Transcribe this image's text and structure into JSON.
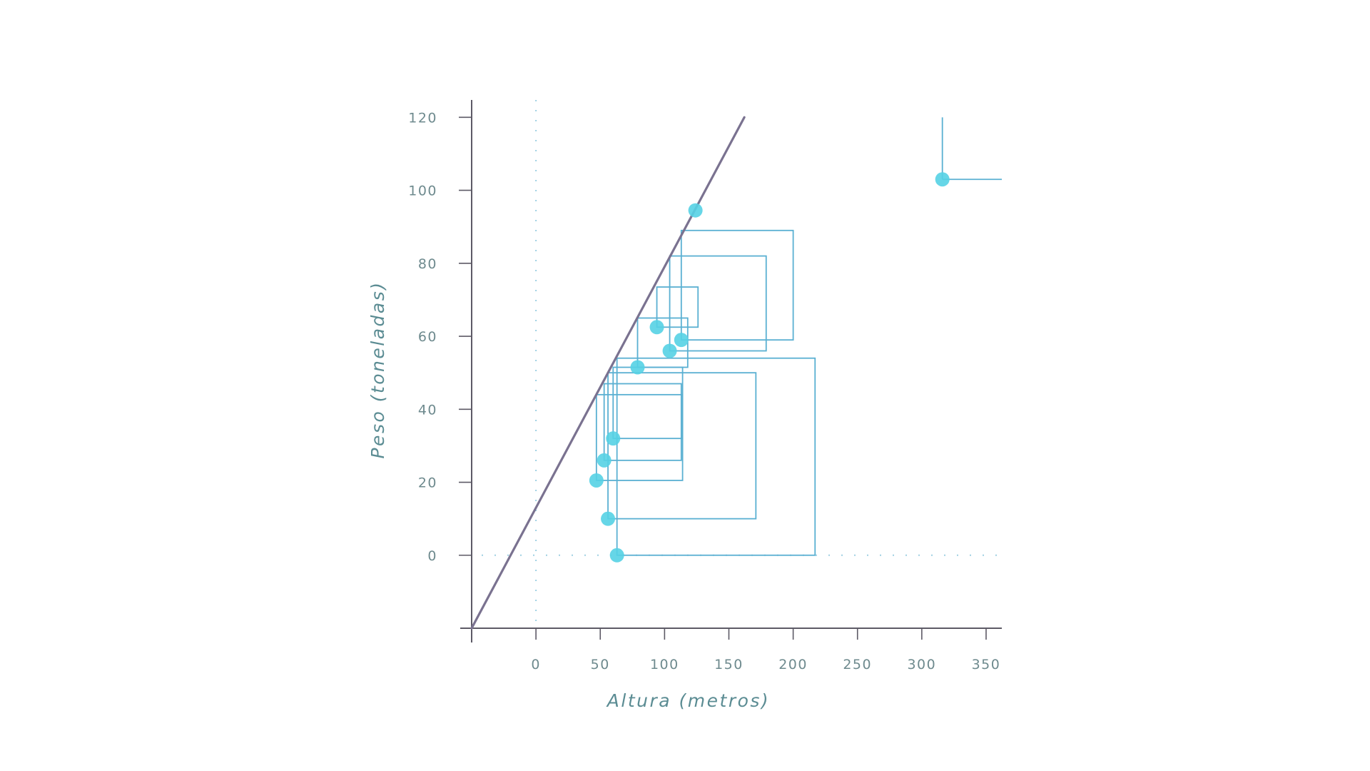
{
  "chart_data": {
    "type": "scatter",
    "title": "",
    "xlabel": "Altura (metros)",
    "ylabel": "Peso  (toneladas)",
    "xlim": [
      -50,
      360
    ],
    "ylim": [
      -20,
      123
    ],
    "x_ticks": [
      "0",
      "50",
      "100",
      "150",
      "200",
      "250",
      "300",
      "350"
    ],
    "y_ticks": [
      "120",
      "100",
      "80",
      "60",
      "40",
      "20",
      "0"
    ],
    "grid": false,
    "reference_lines": {
      "dotted_x": 0,
      "dotted_y": 0,
      "diagonal": {
        "from": [
          -50,
          -20
        ],
        "to": [
          162,
          120
        ]
      }
    },
    "points": [
      {
        "x": 63,
        "y": 0
      },
      {
        "x": 56,
        "y": 10
      },
      {
        "x": 47,
        "y": 20.5
      },
      {
        "x": 53,
        "y": 26
      },
      {
        "x": 60,
        "y": 32
      },
      {
        "x": 79,
        "y": 51.5
      },
      {
        "x": 104,
        "y": 56
      },
      {
        "x": 113,
        "y": 59
      },
      {
        "x": 94,
        "y": 62.5
      },
      {
        "x": 124,
        "y": 94.5
      },
      {
        "x": 316,
        "y": 103
      }
    ],
    "highlight": {
      "x": 316,
      "y": 103
    },
    "rectangles": [
      {
        "x0": 63,
        "x1": 217,
        "y0": 0,
        "y1": 54
      },
      {
        "x0": 56,
        "x1": 171,
        "y0": 10,
        "y1": 50
      },
      {
        "x0": 47,
        "x1": 114,
        "y0": 20.5,
        "y1": 44
      },
      {
        "x0": 53,
        "x1": 113,
        "y0": 26,
        "y1": 47
      },
      {
        "x0": 60,
        "x1": 114,
        "y0": 32,
        "y1": 51.5
      },
      {
        "x0": 79,
        "x1": 118,
        "y0": 51.5,
        "y1": 65
      },
      {
        "x0": 104,
        "x1": 179,
        "y0": 56,
        "y1": 82
      },
      {
        "x0": 113,
        "x1": 200,
        "y0": 59,
        "y1": 89
      },
      {
        "x0": 94,
        "x1": 126,
        "y0": 62.5,
        "y1": 73.5
      }
    ]
  },
  "colors": {
    "background": "#ffffff",
    "axis": "#5d5a66",
    "tick_label": "#6e8a8e",
    "axis_title": "#5b8c93",
    "diagonal": "#7a7290",
    "rect": "#5ab0d2",
    "dotted": "#9fd0e2",
    "point": "#55d2e4"
  }
}
